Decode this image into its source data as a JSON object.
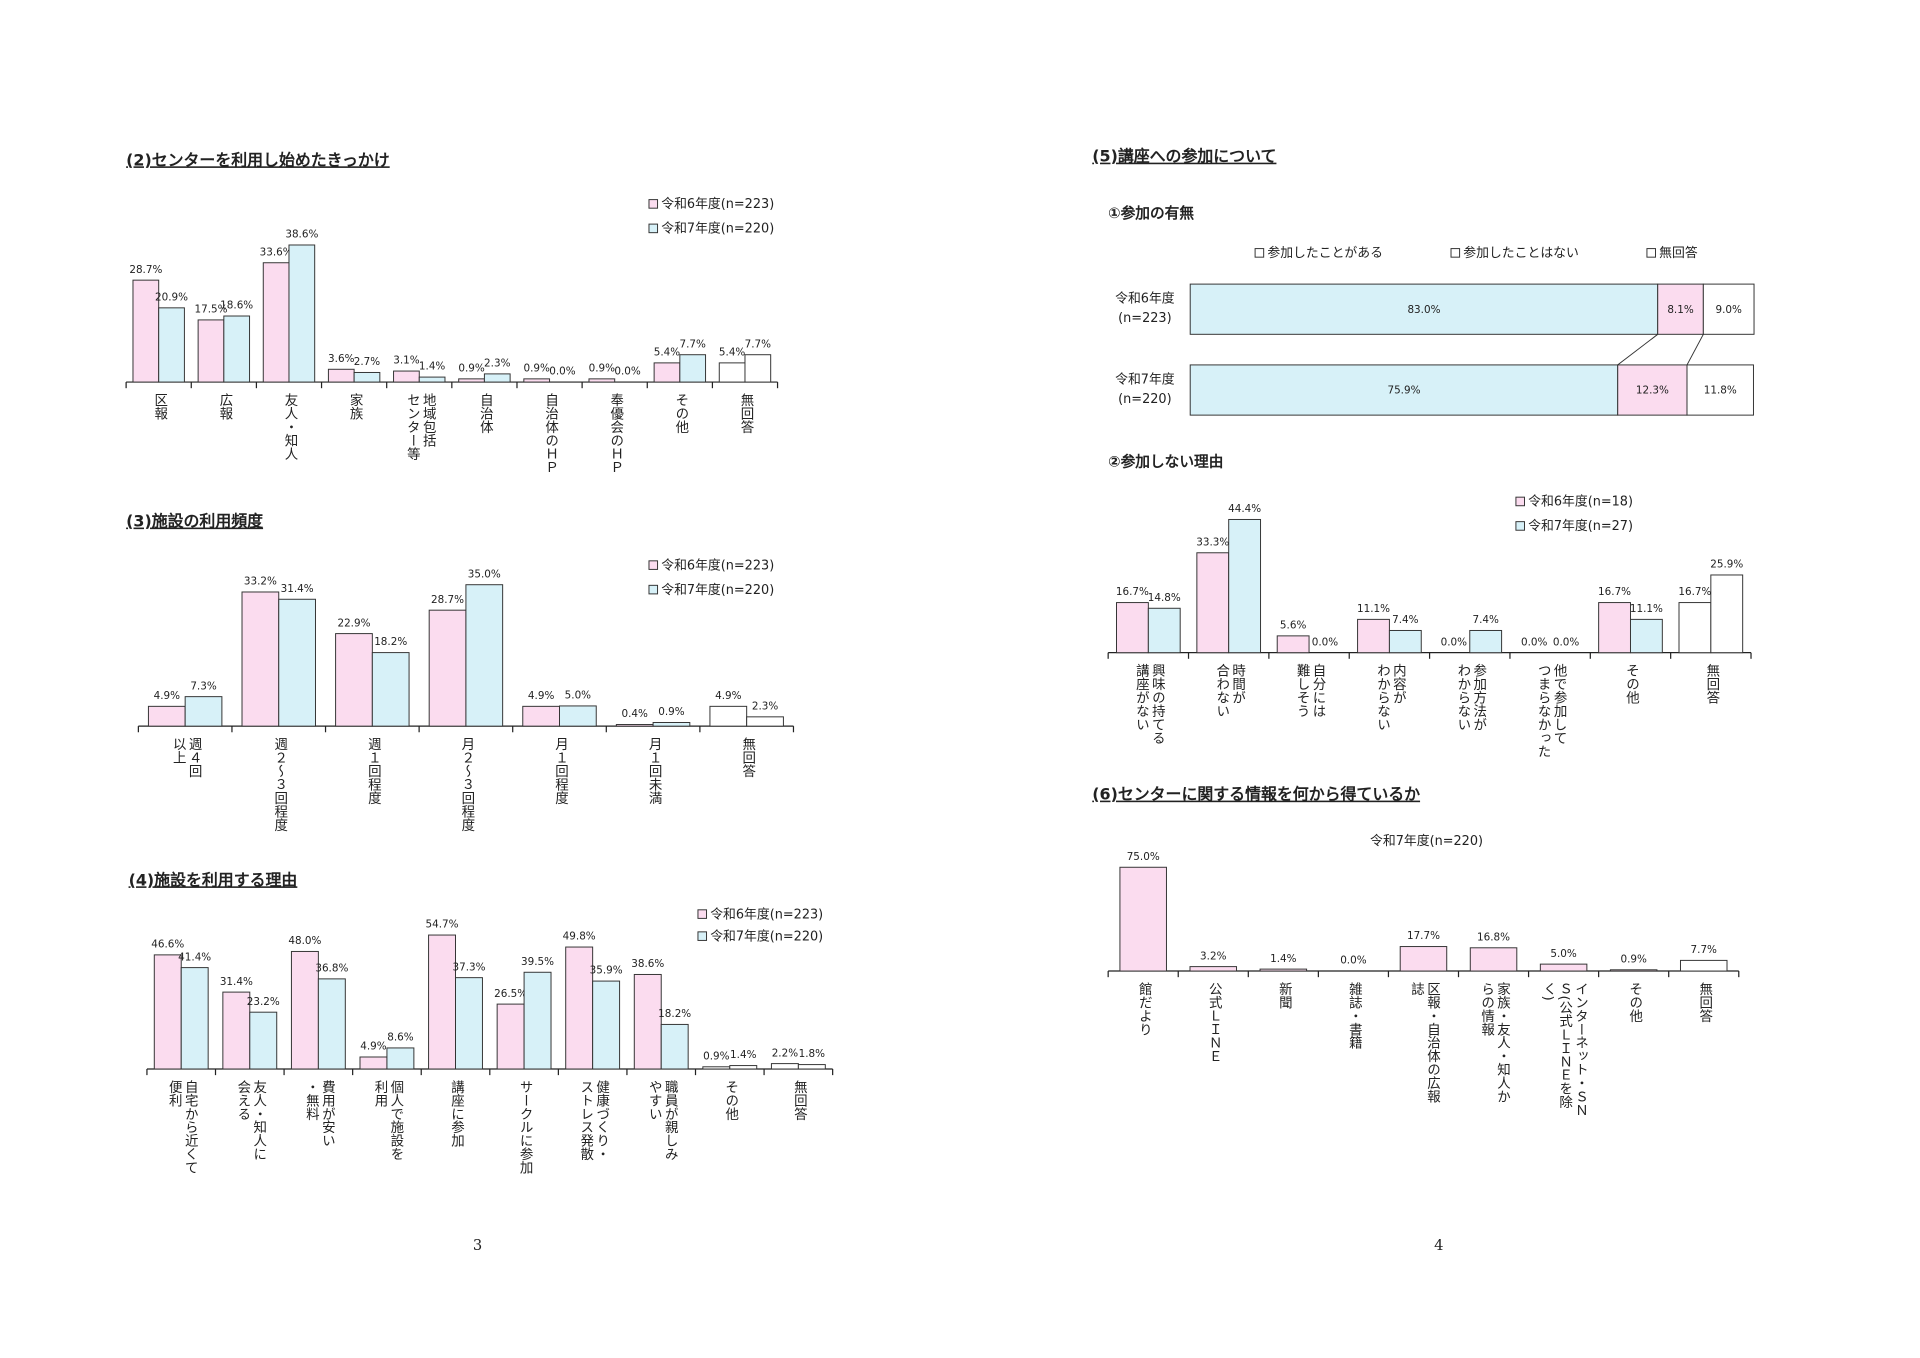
{
  "chart_data": [
    {
      "type": "bar",
      "title": "(2)センターを利用し始めたきっかけ",
      "categories": [
        [
          "区報"
        ],
        [
          "広報"
        ],
        [
          "友人・知人"
        ],
        [
          "家族"
        ],
        [
          "地域包括",
          "センター等"
        ],
        [
          "自治体"
        ],
        [
          "自治体のＨＰ"
        ],
        [
          "奉優会のＨＰ"
        ],
        [
          "その他"
        ],
        [
          "無回答"
        ]
      ],
      "series": [
        {
          "name": "令和6年度(n=223)",
          "color": "#fbdcef",
          "colors": [
            "#fbdcef",
            "#fbdcef",
            "#fbdcef",
            "#fbdcef",
            "#fbdcef",
            "#fbdcef",
            "#fbdcef",
            "#fbdcef",
            "#fbdcef",
            "#ffffff"
          ],
          "values": [
            28.7,
            17.5,
            33.6,
            3.6,
            3.1,
            0.9,
            0.9,
            0.9,
            5.4,
            5.4
          ],
          "value_labels": [
            "28.7%",
            "17.5%",
            "33.6%",
            "3.6%",
            "3.1%",
            "0.9%",
            "0.9%",
            "0.9%",
            "5.4%",
            "5.4%"
          ]
        },
        {
          "name": "令和7年度(n=220)",
          "color": "#d7f1f8",
          "colors": [
            "#d7f1f8",
            "#d7f1f8",
            "#d7f1f8",
            "#d7f1f8",
            "#d7f1f8",
            "#d7f1f8",
            "#d7f1f8",
            "#d7f1f8",
            "#d7f1f8",
            "#ffffff"
          ],
          "values": [
            20.9,
            18.6,
            38.6,
            2.7,
            1.4,
            2.3,
            0.0,
            0.0,
            7.7,
            7.7
          ],
          "value_labels": [
            "20.9%",
            "18.6%",
            "38.6%",
            "2.7%",
            "1.4%",
            "2.3%",
            "0.0%",
            "0.0%",
            "7.7%",
            "7.7%"
          ]
        }
      ]
    },
    {
      "type": "bar",
      "title": "(3)施設の利用頻度",
      "categories": [
        [
          "週４回",
          "以上"
        ],
        [
          "週２～３回程度"
        ],
        [
          "週１回程度"
        ],
        [
          "月２～３回程度"
        ],
        [
          "月１回程度"
        ],
        [
          "月１回未満"
        ],
        [
          "無回答"
        ]
      ],
      "series": [
        {
          "name": "令和6年度(n=223)",
          "color": "#fbdcef",
          "colors": [
            "#fbdcef",
            "#fbdcef",
            "#fbdcef",
            "#fbdcef",
            "#fbdcef",
            "#fbdcef",
            "#ffffff"
          ],
          "values": [
            4.9,
            33.2,
            22.9,
            28.7,
            4.9,
            0.4,
            4.9
          ],
          "value_labels": [
            "4.9%",
            "33.2%",
            "22.9%",
            "28.7%",
            "4.9%",
            "0.4%",
            "4.9%"
          ]
        },
        {
          "name": "令和7年度(n=220)",
          "color": "#d7f1f8",
          "colors": [
            "#d7f1f8",
            "#d7f1f8",
            "#d7f1f8",
            "#d7f1f8",
            "#d7f1f8",
            "#d7f1f8",
            "#ffffff"
          ],
          "values": [
            7.3,
            31.4,
            18.2,
            35.0,
            5.0,
            0.9,
            2.3
          ],
          "value_labels": [
            "7.3%",
            "31.4%",
            "18.2%",
            "35.0%",
            "5.0%",
            "0.9%",
            "2.3%"
          ]
        }
      ]
    },
    {
      "type": "bar",
      "title": "(4)施設を利用する理由",
      "categories": [
        [
          "自宅から近くて",
          "便利"
        ],
        [
          "友人・知人に",
          "会える"
        ],
        [
          "費用が安い",
          "・無料"
        ],
        [
          "個人で施設を",
          "利用"
        ],
        [
          "講座に参加"
        ],
        [
          "サークルに参加"
        ],
        [
          "健康づくり・",
          "ストレス発散"
        ],
        [
          "職員が親しみ",
          "やすい"
        ],
        [
          "その他"
        ],
        [
          "無回答"
        ]
      ],
      "series": [
        {
          "name": "令和6年度(n=223)",
          "color": "#fbdcef",
          "colors": [
            "#fbdcef",
            "#fbdcef",
            "#fbdcef",
            "#fbdcef",
            "#fbdcef",
            "#fbdcef",
            "#fbdcef",
            "#fbdcef",
            "#ffffff",
            "#ffffff"
          ],
          "values": [
            46.6,
            31.4,
            48.0,
            4.9,
            54.7,
            26.5,
            49.8,
            38.6,
            0.9,
            2.2
          ],
          "value_labels": [
            "46.6%",
            "31.4%",
            "48.0%",
            "4.9%",
            "54.7%",
            "26.5%",
            "49.8%",
            "38.6%",
            "0.9%",
            "2.2%"
          ]
        },
        {
          "name": "令和7年度(n=220)",
          "color": "#d7f1f8",
          "colors": [
            "#d7f1f8",
            "#d7f1f8",
            "#d7f1f8",
            "#d7f1f8",
            "#d7f1f8",
            "#d7f1f8",
            "#d7f1f8",
            "#d7f1f8",
            "#ffffff",
            "#ffffff"
          ],
          "values": [
            41.4,
            23.2,
            36.8,
            8.6,
            37.3,
            39.5,
            35.9,
            18.2,
            1.4,
            1.8
          ],
          "value_labels": [
            "41.4%",
            "23.2%",
            "36.8%",
            "8.6%",
            "37.3%",
            "39.5%",
            "35.9%",
            "18.2%",
            "1.4%",
            "1.8%"
          ]
        }
      ]
    },
    {
      "type": "stacked-hbar",
      "section_title": "(5)講座への参加について",
      "title": "①参加の有無",
      "categories": [
        [
          "令和6年度",
          "(n=223)"
        ],
        [
          "令和7年度",
          "(n=220)"
        ]
      ],
      "series": [
        {
          "name": "参加したことがある",
          "color": "#d7f1f8",
          "values": [
            83.0,
            75.9
          ],
          "value_labels": [
            "83.0%",
            "75.9%"
          ]
        },
        {
          "name": "参加したことはない",
          "color": "#fbdcef",
          "values": [
            8.1,
            12.3
          ],
          "value_labels": [
            "8.1%",
            "12.3%"
          ]
        },
        {
          "name": "無回答",
          "color": "#ffffff",
          "values": [
            9.0,
            11.8
          ],
          "value_labels": [
            "9.0%",
            "11.8%"
          ]
        }
      ]
    },
    {
      "type": "bar",
      "title": "②参加しない理由",
      "categories": [
        [
          "興味の持てる",
          "講座がない"
        ],
        [
          "時間が",
          "合わない"
        ],
        [
          "自分には",
          "難しそう"
        ],
        [
          "内容が",
          "わからない"
        ],
        [
          "参加方法が",
          "わからない"
        ],
        [
          "他で参加して",
          "つまらなかった"
        ],
        [
          "その他"
        ],
        [
          "無回答"
        ]
      ],
      "series": [
        {
          "name": "令和6年度(n=18)",
          "color": "#fbdcef",
          "colors": [
            "#fbdcef",
            "#fbdcef",
            "#fbdcef",
            "#fbdcef",
            "#fbdcef",
            "#fbdcef",
            "#fbdcef",
            "#ffffff"
          ],
          "values": [
            16.7,
            33.3,
            5.6,
            11.1,
            0.0,
            0.0,
            16.7,
            16.7
          ],
          "value_labels": [
            "16.7%",
            "33.3%",
            "5.6%",
            "11.1%",
            "0.0%",
            "0.0%",
            "16.7%",
            "16.7%"
          ]
        },
        {
          "name": "令和7年度(n=27)",
          "color": "#d7f1f8",
          "colors": [
            "#d7f1f8",
            "#d7f1f8",
            "#d7f1f8",
            "#d7f1f8",
            "#d7f1f8",
            "#d7f1f8",
            "#d7f1f8",
            "#ffffff"
          ],
          "values": [
            14.8,
            44.4,
            0.0,
            7.4,
            7.4,
            0.0,
            11.1,
            25.9
          ],
          "value_labels": [
            "14.8%",
            "44.4%",
            "0.0%",
            "7.4%",
            "7.4%",
            "0.0%",
            "11.1%",
            "25.9%"
          ]
        }
      ]
    },
    {
      "type": "bar",
      "title": "(6)センターに関する情報を何から得ているか",
      "categories": [
        [
          "館だより"
        ],
        [
          "公式ＬＩＮＥ"
        ],
        [
          "新聞"
        ],
        [
          "雑誌・書籍"
        ],
        [
          "区報・自治体の広報",
          "誌"
        ],
        [
          "家族・友人・知人か",
          "らの情報"
        ],
        [
          "インターネット・ＳＮ",
          "Ｓ(公式ＬＩＮＥを除",
          "く)"
        ],
        [
          "その他"
        ],
        [
          "無回答"
        ]
      ],
      "series": [
        {
          "name": "令和7年度(n=220)",
          "color": "#fbdcef",
          "colors": [
            "#fbdcef",
            "#fbdcef",
            "#fbdcef",
            "#fbdcef",
            "#fbdcef",
            "#fbdcef",
            "#fbdcef",
            "#fbdcef",
            "#ffffff"
          ],
          "values": [
            75.0,
            3.2,
            1.4,
            0.0,
            17.7,
            16.8,
            5.0,
            0.9,
            7.7
          ],
          "value_labels": [
            "75.0%",
            "3.2%",
            "1.4%",
            "0.0%",
            "17.7%",
            "16.8%",
            "5.0%",
            "0.9%",
            "7.7%"
          ]
        }
      ]
    }
  ],
  "page_numbers": [
    "3",
    "4"
  ]
}
